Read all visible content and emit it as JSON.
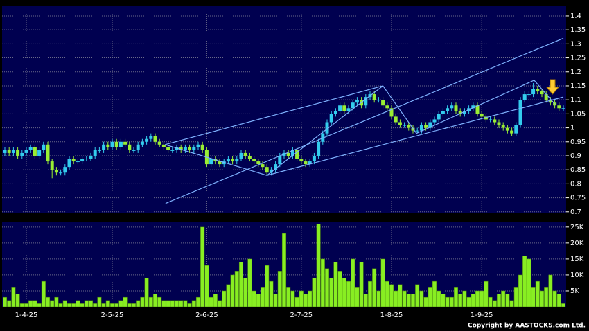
{
  "chart_data": {
    "type": "candlestick",
    "categories": [
      null,
      null,
      null,
      null,
      null,
      "1-4-25",
      null,
      null,
      null,
      null,
      null,
      null,
      null,
      null,
      null,
      null,
      null,
      null,
      null,
      null,
      null,
      null,
      null,
      null,
      null,
      "2-5-25",
      null,
      null,
      null,
      null,
      null,
      null,
      null,
      null,
      null,
      null,
      null,
      null,
      null,
      null,
      null,
      null,
      null,
      null,
      null,
      null,
      null,
      "2-6-25",
      null,
      null,
      null,
      null,
      null,
      null,
      null,
      null,
      null,
      null,
      null,
      null,
      null,
      null,
      null,
      null,
      null,
      null,
      null,
      null,
      null,
      "2-7-25",
      null,
      null,
      null,
      null,
      null,
      null,
      null,
      null,
      null,
      null,
      null,
      null,
      null,
      null,
      null,
      null,
      null,
      null,
      null,
      null,
      "1-8-25",
      null,
      null,
      null,
      null,
      null,
      null,
      null,
      null,
      null,
      null,
      null,
      null,
      null,
      null,
      null,
      null,
      null,
      null,
      null,
      null,
      "1-9-25",
      null,
      null,
      null,
      null,
      null,
      null,
      null,
      null,
      null,
      null,
      null,
      null,
      null,
      null,
      null,
      null,
      null,
      null,
      null
    ],
    "open": [
      0.91,
      0.92,
      0.91,
      0.92,
      0.9,
      0.91,
      0.92,
      0.93,
      0.9,
      0.92,
      0.94,
      0.88,
      0.85,
      0.84,
      0.84,
      0.86,
      0.89,
      0.88,
      0.88,
      0.89,
      0.89,
      0.9,
      0.92,
      0.92,
      0.94,
      0.93,
      0.95,
      0.93,
      0.95,
      0.94,
      0.92,
      0.92,
      0.94,
      0.95,
      0.96,
      0.97,
      0.95,
      0.94,
      0.93,
      0.92,
      0.92,
      0.93,
      0.92,
      0.93,
      0.92,
      0.93,
      0.94,
      0.92,
      0.87,
      0.89,
      0.88,
      0.87,
      0.88,
      0.89,
      0.88,
      0.89,
      0.91,
      0.9,
      0.89,
      0.88,
      0.87,
      0.86,
      0.84,
      0.85,
      0.87,
      0.9,
      0.91,
      0.9,
      0.92,
      0.89,
      0.88,
      0.87,
      0.88,
      0.9,
      0.95,
      0.98,
      1.02,
      1.05,
      1.06,
      1.08,
      1.06,
      1.07,
      1.09,
      1.1,
      1.08,
      1.11,
      1.12,
      1.1,
      1.1,
      1.08,
      1.07,
      1.04,
      1.02,
      1.01,
      1.01,
      1.0,
      0.99,
      0.99,
      1.01,
      1.0,
      1.02,
      1.03,
      1.05,
      1.06,
      1.07,
      1.08,
      1.06,
      1.05,
      1.06,
      1.07,
      1.08,
      1.05,
      1.04,
      1.03,
      1.03,
      1.02,
      1.01,
      1.0,
      0.99,
      0.98,
      1.01,
      1.1,
      1.12,
      1.12,
      1.14,
      1.13,
      1.12,
      1.1,
      1.09,
      1.08,
      1.07
    ],
    "high": [
      0.93,
      0.93,
      0.93,
      0.93,
      0.92,
      0.93,
      0.94,
      0.94,
      0.93,
      0.95,
      0.95,
      0.89,
      0.86,
      0.85,
      0.87,
      0.9,
      0.9,
      0.89,
      0.9,
      0.9,
      0.91,
      0.93,
      0.93,
      0.95,
      0.95,
      0.96,
      0.96,
      0.96,
      0.96,
      0.95,
      0.93,
      0.95,
      0.96,
      0.97,
      0.98,
      0.98,
      0.96,
      0.95,
      0.94,
      0.93,
      0.94,
      0.94,
      0.94,
      0.94,
      0.94,
      0.95,
      0.95,
      0.93,
      0.9,
      0.9,
      0.89,
      0.89,
      0.9,
      0.9,
      0.9,
      0.92,
      0.92,
      0.91,
      0.9,
      0.89,
      0.88,
      0.87,
      0.86,
      0.88,
      0.91,
      0.92,
      0.92,
      0.93,
      0.93,
      0.9,
      0.89,
      0.89,
      0.91,
      0.96,
      0.99,
      1.03,
      1.06,
      1.07,
      1.09,
      1.09,
      1.08,
      1.1,
      1.11,
      1.11,
      1.12,
      1.13,
      1.13,
      1.11,
      1.11,
      1.09,
      1.08,
      1.05,
      1.03,
      1.02,
      1.02,
      1.01,
      1.0,
      1.02,
      1.02,
      1.03,
      1.04,
      1.06,
      1.07,
      1.08,
      1.09,
      1.09,
      1.07,
      1.07,
      1.08,
      1.09,
      1.09,
      1.06,
      1.05,
      1.04,
      1.04,
      1.03,
      1.02,
      1.01,
      1.0,
      1.02,
      1.11,
      1.13,
      1.13,
      1.16,
      1.15,
      1.14,
      1.13,
      1.11,
      1.1,
      1.09,
      1.08
    ],
    "low": [
      0.9,
      0.9,
      0.9,
      0.89,
      0.89,
      0.9,
      0.91,
      0.89,
      0.89,
      0.91,
      0.87,
      0.82,
      0.83,
      0.83,
      0.83,
      0.85,
      0.87,
      0.87,
      0.87,
      0.88,
      0.88,
      0.89,
      0.91,
      0.91,
      0.92,
      0.92,
      0.92,
      0.92,
      0.93,
      0.91,
      0.91,
      0.91,
      0.93,
      0.94,
      0.95,
      0.94,
      0.93,
      0.92,
      0.91,
      0.91,
      0.91,
      0.91,
      0.91,
      0.91,
      0.91,
      0.92,
      0.91,
      0.86,
      0.86,
      0.87,
      0.86,
      0.86,
      0.87,
      0.87,
      0.87,
      0.88,
      0.89,
      0.88,
      0.87,
      0.86,
      0.85,
      0.83,
      0.83,
      0.84,
      0.86,
      0.89,
      0.89,
      0.89,
      0.88,
      0.87,
      0.86,
      0.86,
      0.87,
      0.89,
      0.94,
      0.97,
      1.01,
      1.04,
      1.05,
      1.05,
      1.05,
      1.06,
      1.08,
      1.07,
      1.07,
      1.1,
      1.09,
      1.09,
      1.07,
      1.06,
      1.03,
      1.01,
      1.0,
      1.0,
      0.99,
      0.98,
      0.98,
      0.98,
      0.99,
      0.99,
      1.01,
      1.02,
      1.04,
      1.05,
      1.06,
      1.05,
      1.04,
      1.04,
      1.05,
      1.06,
      1.04,
      1.03,
      1.02,
      1.02,
      1.01,
      1.0,
      0.99,
      0.98,
      0.97,
      0.97,
      1.0,
      1.09,
      1.11,
      1.11,
      1.12,
      1.11,
      1.09,
      1.08,
      1.07,
      1.06,
      1.06
    ],
    "close": [
      0.92,
      0.91,
      0.92,
      0.9,
      0.91,
      0.92,
      0.93,
      0.9,
      0.92,
      0.94,
      0.88,
      0.85,
      0.84,
      0.84,
      0.86,
      0.89,
      0.88,
      0.88,
      0.89,
      0.89,
      0.9,
      0.92,
      0.92,
      0.94,
      0.93,
      0.95,
      0.93,
      0.95,
      0.94,
      0.92,
      0.92,
      0.94,
      0.95,
      0.96,
      0.97,
      0.95,
      0.94,
      0.93,
      0.92,
      0.92,
      0.93,
      0.92,
      0.93,
      0.92,
      0.93,
      0.94,
      0.92,
      0.87,
      0.89,
      0.88,
      0.87,
      0.88,
      0.89,
      0.88,
      0.89,
      0.91,
      0.9,
      0.89,
      0.88,
      0.87,
      0.86,
      0.84,
      0.85,
      0.87,
      0.9,
      0.91,
      0.9,
      0.92,
      0.89,
      0.88,
      0.87,
      0.88,
      0.9,
      0.95,
      0.98,
      1.02,
      1.05,
      1.06,
      1.08,
      1.06,
      1.07,
      1.09,
      1.1,
      1.08,
      1.11,
      1.12,
      1.1,
      1.1,
      1.08,
      1.07,
      1.04,
      1.02,
      1.01,
      1.01,
      1.0,
      0.99,
      0.99,
      1.01,
      1.0,
      1.02,
      1.03,
      1.05,
      1.06,
      1.07,
      1.08,
      1.06,
      1.05,
      1.06,
      1.07,
      1.08,
      1.05,
      1.04,
      1.03,
      1.03,
      1.02,
      1.01,
      1.0,
      0.99,
      0.98,
      1.01,
      1.1,
      1.12,
      1.12,
      1.14,
      1.13,
      1.12,
      1.1,
      1.09,
      1.08,
      1.07,
      1.07
    ],
    "volume": [
      3000,
      2000,
      6000,
      4000,
      1000,
      1000,
      2000,
      2000,
      1000,
      8000,
      3000,
      2000,
      3000,
      1000,
      2000,
      1000,
      1000,
      2000,
      1000,
      2000,
      2000,
      1000,
      3000,
      1000,
      2000,
      1000,
      1000,
      2000,
      3000,
      1000,
      1000,
      2000,
      3000,
      9000,
      3000,
      4000,
      3000,
      2000,
      2000,
      2000,
      2000,
      2000,
      2000,
      1000,
      2000,
      3000,
      25000,
      13000,
      3000,
      4000,
      2000,
      5000,
      7000,
      10000,
      11000,
      14000,
      9000,
      15000,
      5000,
      4000,
      6000,
      13000,
      8000,
      4000,
      11000,
      23000,
      6000,
      5000,
      3000,
      5000,
      4000,
      5000,
      9000,
      26000,
      15000,
      12000,
      9000,
      14000,
      11000,
      9000,
      8000,
      15000,
      6000,
      14000,
      4000,
      8000,
      12000,
      5000,
      15000,
      8000,
      7000,
      5000,
      7000,
      5000,
      4000,
      4000,
      7000,
      5000,
      3000,
      6000,
      8000,
      5000,
      4000,
      3000,
      3000,
      6000,
      4000,
      5000,
      3000,
      4000,
      5000,
      5000,
      8000,
      3000,
      2000,
      4000,
      5000,
      4000,
      2000,
      6000,
      10000,
      16000,
      15000,
      6000,
      8000,
      5000,
      6000,
      10000,
      5000,
      4000,
      1000
    ],
    "up_color": "#33ccee",
    "down_color": "#99ee33",
    "volume_color": "#88ee22",
    "trendline_color": "#7fb2ff",
    "ylim": [
      0.697,
      1.437
    ],
    "yticks": [
      0.7,
      0.75,
      0.8,
      0.85,
      0.9,
      0.95,
      1,
      1.05,
      1.1,
      1.15,
      1.2,
      1.25,
      1.3,
      1.35,
      1.4
    ],
    "volume_ylim": [
      0,
      26700
    ],
    "volume_yticks": [
      {
        "value": 5000,
        "label": "5K"
      },
      {
        "value": 10000,
        "label": "10K"
      },
      {
        "value": 15000,
        "label": "15K"
      },
      {
        "value": 20000,
        "label": "20K"
      },
      {
        "value": 25000,
        "label": "25K"
      }
    ],
    "grid": true,
    "trendlines": [
      {
        "x": [
          37.3,
          88
        ],
        "y": [
          0.94,
          1.15
        ]
      },
      {
        "x": [
          37.4,
          130
        ],
        "y": [
          0.73,
          1.32
        ]
      },
      {
        "x": [
          37.3,
          61,
          88,
          95.8,
          123.2,
          128
        ],
        "y": [
          0.94,
          0.83,
          1.15,
          0.98,
          1.17,
          1.085
        ]
      },
      {
        "x": [
          61,
          130
        ],
        "y": [
          0.83,
          1.11
        ]
      }
    ]
  },
  "footer": {
    "copyright": "Copyright by AASTOCKS.com Ltd."
  }
}
